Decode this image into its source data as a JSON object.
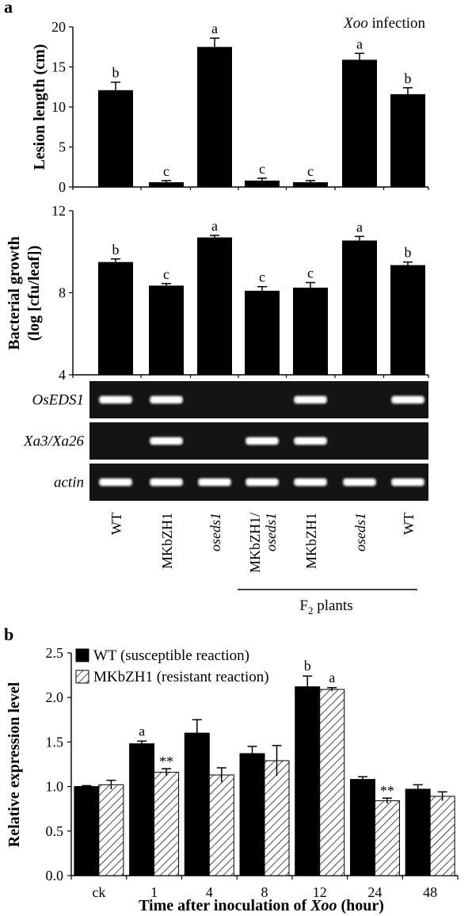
{
  "panel_labels": {
    "a": "a",
    "b": "b"
  },
  "chart_data": [
    {
      "id": "lesion",
      "type": "bar",
      "ylabel": "Lesion length (cm)",
      "annotation": {
        "italic": "Xoo",
        "text": " infection"
      },
      "ylim": [
        0,
        20
      ],
      "yticks": [
        0,
        5,
        10,
        15,
        20
      ],
      "categories": [
        "WT",
        "MKbZH1",
        "oseds1",
        "MKbZH1/oseds1",
        "MKbZH1",
        "oseds1",
        "WT"
      ],
      "values": [
        12.1,
        0.6,
        17.5,
        0.8,
        0.6,
        15.9,
        11.6
      ],
      "errors": [
        1.0,
        0.2,
        1.1,
        0.3,
        0.2,
        0.8,
        0.8
      ],
      "letters": [
        "b",
        "c",
        "a",
        "c",
        "c",
        "a",
        "b"
      ]
    },
    {
      "id": "bacterial",
      "type": "bar",
      "ylabel_line1": "Bacterial growth",
      "ylabel_line2": "(log [cfu/leaf])",
      "ylim": [
        4,
        12
      ],
      "yticks": [
        4,
        8,
        12
      ],
      "categories": [
        "WT",
        "MKbZH1",
        "oseds1",
        "MKbZH1/oseds1",
        "MKbZH1",
        "oseds1",
        "WT"
      ],
      "values": [
        9.5,
        8.35,
        10.7,
        8.1,
        8.25,
        10.55,
        9.35
      ],
      "errors": [
        0.15,
        0.1,
        0.1,
        0.2,
        0.25,
        0.2,
        0.15
      ],
      "letters": [
        "b",
        "c",
        "a",
        "c",
        "c",
        "a",
        "b"
      ]
    },
    {
      "id": "expression",
      "type": "bar",
      "ylabel": "Relative expression level",
      "xlabel_prefix": "Time after inoculation of ",
      "xlabel_italic": "Xoo",
      "xlabel_suffix": " (hour)",
      "ylim": [
        0,
        2.5
      ],
      "yticks": [
        "0.0",
        "0.5",
        "1.0",
        "1.5",
        "2.0",
        "2.5"
      ],
      "categories": [
        "ck",
        "1",
        "4",
        "8",
        "12",
        "24",
        "48"
      ],
      "series": [
        {
          "name": "WT (susceptible reaction)",
          "values": [
            1.0,
            1.48,
            1.6,
            1.37,
            2.12,
            1.08,
            0.97
          ],
          "errors": [
            0.01,
            0.03,
            0.15,
            0.08,
            0.12,
            0.03,
            0.05
          ],
          "labels": [
            "",
            "a",
            "",
            "",
            "b",
            "",
            ""
          ]
        },
        {
          "name": "MKbZH1 (resistant reaction)",
          "values": [
            1.02,
            1.16,
            1.13,
            1.29,
            2.09,
            0.84,
            0.89
          ],
          "errors": [
            0.05,
            0.04,
            0.08,
            0.17,
            0.02,
            0.03,
            0.05
          ],
          "labels": [
            "",
            "**",
            "",
            "",
            "a",
            "**",
            ""
          ]
        }
      ],
      "legend_position": "top-left"
    }
  ],
  "gel": {
    "genes": [
      "OsEDS1",
      "Xa3/Xa26",
      "actin"
    ],
    "bands": [
      [
        1,
        1,
        0,
        0,
        1,
        0,
        1
      ],
      [
        0,
        1,
        0,
        1,
        1,
        0,
        0
      ],
      [
        1,
        1,
        1,
        1,
        1,
        1,
        1
      ]
    ]
  },
  "lane_labels": [
    {
      "line1": "WT",
      "line2": "",
      "italic": false
    },
    {
      "line1": "MKbZH1",
      "line2": "",
      "italic": false
    },
    {
      "line1": "oseds1",
      "line2": "",
      "italic": true
    },
    {
      "line1": "MKbZH1/",
      "line2": "oseds1",
      "italic": false,
      "italic2": true
    },
    {
      "line1": "MKbZH1",
      "line2": "",
      "italic": false
    },
    {
      "line1": "oseds1",
      "line2": "",
      "italic": true
    },
    {
      "line1": "WT",
      "line2": "",
      "italic": false
    }
  ],
  "f2_label": {
    "main": "F",
    "sub": "2",
    "rest": " plants"
  },
  "colors": {
    "bar": "#000000",
    "gel_bg": "#141414",
    "band": "#e6e6e6",
    "hatch": "#000000"
  }
}
